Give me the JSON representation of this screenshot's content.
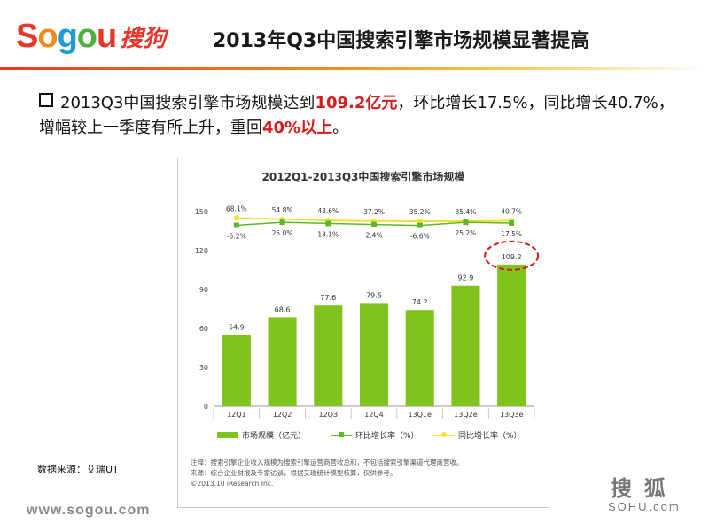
{
  "logo": {
    "sogou_text": [
      "S",
      "o",
      "g",
      "o",
      "u"
    ],
    "chinese": "搜狗"
  },
  "header": {
    "title": "2013年Q3中国搜索引擎市场规模显著提高"
  },
  "summary": {
    "part1": "2013Q3中国搜索引擎市场规模达到",
    "hl1": "109.2亿元",
    "part2": "，环比增长17.5%，同比增长40.7%，增幅较上一季度有所上升，重回",
    "hl2": "40%以上",
    "part3": "。"
  },
  "chart_data": {
    "type": "bar",
    "title": "2012Q1-2013Q3中国搜索引擎市场规模",
    "categories": [
      "12Q1",
      "12Q2",
      "12Q3",
      "12Q4",
      "13Q1e",
      "13Q2e",
      "13Q3e"
    ],
    "series": [
      {
        "name": "市场规模（亿元）",
        "type": "bar",
        "values": [
          54.9,
          68.6,
          77.6,
          79.5,
          74.2,
          92.9,
          109.2
        ]
      },
      {
        "name": "环比增长率（%）",
        "type": "line",
        "values": [
          -5.2,
          25.0,
          13.1,
          2.4,
          -6.6,
          25.2,
          17.5
        ]
      },
      {
        "name": "同比增长率（%）",
        "type": "line",
        "values": [
          68.1,
          54.8,
          43.6,
          37.2,
          35.2,
          35.4,
          40.7
        ]
      }
    ],
    "bar_labels": [
      "54.9",
      "68.6",
      "77.6",
      "79.5",
      "74.2",
      "92.9",
      "109.2"
    ],
    "qoq_labels": [
      "-5.2%",
      "25.0%",
      "13.1%",
      "2.4%",
      "-6.6%",
      "25.2%",
      "17.5%"
    ],
    "yoy_labels": [
      "68.1%",
      "54.8%",
      "43.6%",
      "37.2%",
      "35.2%",
      "35.4%",
      "40.7%"
    ],
    "yticks": [
      "0",
      "30",
      "60",
      "90",
      "120",
      "150"
    ],
    "ylim": [
      0,
      150
    ],
    "highlight_category": "13Q3e",
    "colors": {
      "bar": "#7fc31c",
      "qoq": "#5cb82a",
      "yoy": "#f2e12f",
      "highlight": "#d51b1b"
    },
    "legend_position": "bottom",
    "note_lines": [
      "注释：搜索引擎企业收入规模为搜索引擎运营商营收总和，不包括搜索引擎渠道代理商营收。",
      "来源：综合企业财报及专家访谈，根据艾瑞统计模型核算，仅供参考。",
      "©2013.10 iResearch Inc."
    ]
  },
  "source_label": "数据来源：艾瑞UT",
  "footer": {
    "url": "www.sogou.com",
    "sohu_cn": "搜狐",
    "sohu_en": "SOHU.com"
  }
}
